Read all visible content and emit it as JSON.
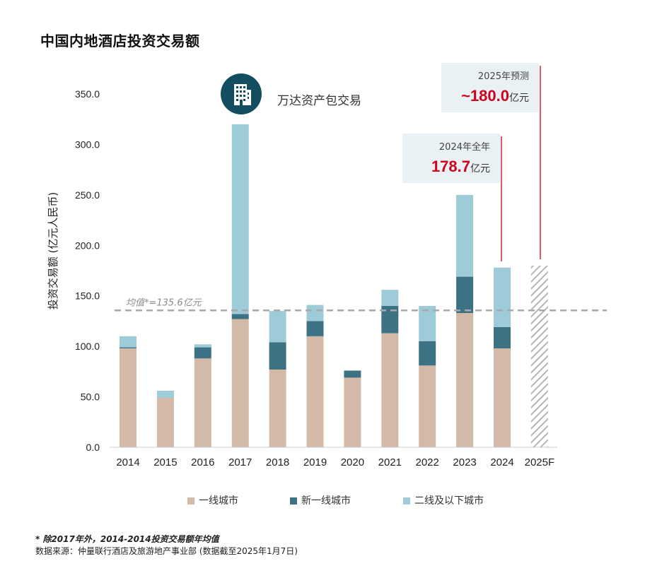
{
  "title": "中国内地酒店投资交易额",
  "colors": {
    "tier1": "#d3b9a8",
    "new_tier1": "#3d7285",
    "tier2": "#9ecbd8",
    "forecast_hatch": "#b5b5b5",
    "average_line": "#a9a9a9",
    "callout_line": "#d0021b",
    "callout_bg": "#e9f1f4",
    "icon_bg": "#124e5f"
  },
  "annotation_2017": {
    "icon": "office-building-icon",
    "text": "万达资产包交易"
  },
  "callout_2024": {
    "label": "2024年全年",
    "value": "178.7",
    "unit": "亿元"
  },
  "callout_2025": {
    "label": "2025年预测",
    "value": "~180.0",
    "unit": "亿元"
  },
  "legend": {
    "items": [
      "一线城市",
      "新一线城市",
      "二线及以下城市"
    ]
  },
  "footnote": "* 除2017年外，2014-2014投资交易额年均值",
  "source": "数据来源：仲量联行酒店及旅游地产事业部 (数据截至2025年1月7日)",
  "chart_data": {
    "type": "bar",
    "stacked": true,
    "ylabel": "投资交易额 (亿元人民币)",
    "ylim": [
      0,
      350
    ],
    "yticks": [
      "0.0",
      "50.0",
      "100.0",
      "150.0",
      "200.0",
      "250.0",
      "300.0",
      "350.0"
    ],
    "categories": [
      "2014",
      "2015",
      "2016",
      "2017",
      "2018",
      "2019",
      "2020",
      "2021",
      "2022",
      "2023",
      "2024",
      "2025F"
    ],
    "series": [
      {
        "name": "一线城市",
        "values": [
          98,
          49,
          88,
          127,
          77,
          110,
          69,
          113,
          81,
          133,
          98,
          null
        ]
      },
      {
        "name": "新一线城市",
        "values": [
          1,
          0,
          11,
          5,
          27,
          15,
          7,
          27,
          24,
          36,
          21,
          null
        ]
      },
      {
        "name": "二线及以下城市",
        "values": [
          11,
          7,
          3,
          188,
          31,
          16,
          0,
          16,
          35,
          81,
          59,
          null
        ]
      }
    ],
    "forecast": {
      "category": "2025F",
      "value": 180.0
    },
    "average": {
      "value": 135.6,
      "label": "均值*=135.6亿元"
    }
  }
}
